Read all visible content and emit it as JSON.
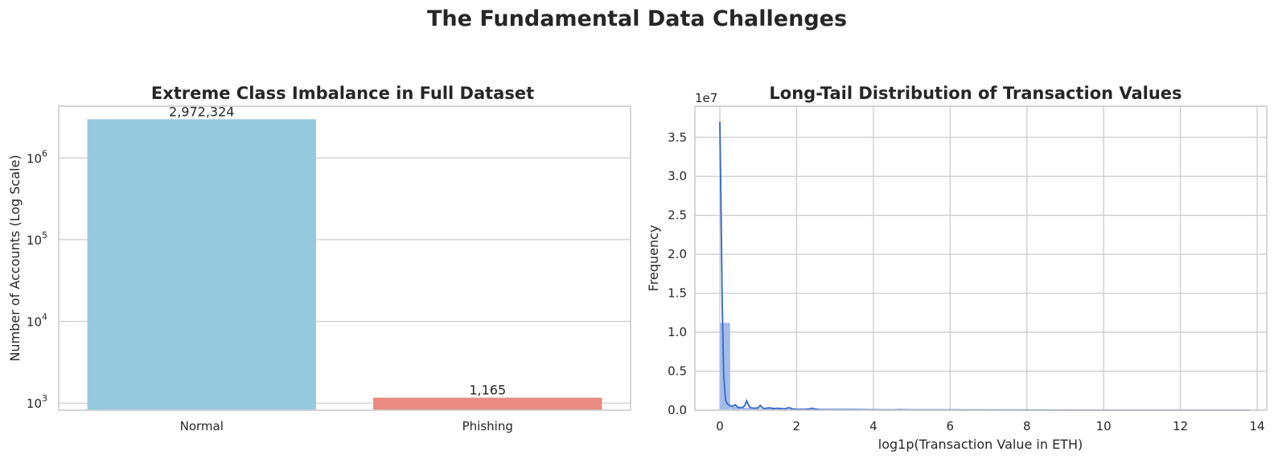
{
  "figure": {
    "title": "The Fundamental Data Challenges"
  },
  "chart_data": [
    {
      "type": "bar",
      "title": "Extreme Class Imbalance in Full Dataset",
      "xlabel": "",
      "ylabel": "Number of Accounts (Log Scale)",
      "y_scale": "log",
      "ylim": [
        820,
        4300000
      ],
      "y_ticks": [
        {
          "value": 1000,
          "base": "10",
          "exp": "3"
        },
        {
          "value": 10000,
          "base": "10",
          "exp": "4"
        },
        {
          "value": 100000,
          "base": "10",
          "exp": "5"
        },
        {
          "value": 1000000,
          "base": "10",
          "exp": "6"
        }
      ],
      "categories": [
        "Normal",
        "Phishing"
      ],
      "values": [
        2972324,
        1165
      ],
      "value_labels": [
        "2,972,324",
        "1,165"
      ],
      "colors": [
        "#95c9dd",
        "#e98b82"
      ],
      "grid": true
    },
    {
      "type": "bar",
      "subtype": "histogram_with_kde",
      "title": "Long-Tail Distribution of Transaction Values",
      "xlabel": "log1p(Transaction Value in ETH)",
      "ylabel": "Frequency",
      "y_offset_text": "1e7",
      "xlim": [
        -0.65,
        14.25
      ],
      "ylim": [
        0,
        3.9
      ],
      "x_ticks": [
        "0",
        "2",
        "4",
        "6",
        "8",
        "10",
        "12",
        "14"
      ],
      "y_ticks": [
        "0.0",
        "0.5",
        "1.0",
        "1.5",
        "2.0",
        "2.5",
        "3.0",
        "3.5"
      ],
      "bar_color": "#a3bbe8",
      "line_color": "#3d6fcf",
      "histogram": {
        "bin_edges": [
          0,
          0.28,
          0.56,
          0.84,
          1.12,
          1.4,
          1.68,
          1.96,
          2.24,
          2.52,
          2.8,
          3.08,
          3.36,
          3.64,
          3.92,
          4.2,
          4.48,
          4.76,
          5.04
        ],
        "counts": [
          1.12,
          0.045,
          0.03,
          0.02,
          0.025,
          0.015,
          0.012,
          0.01,
          0.012,
          0.008,
          0.006,
          0.005,
          0.004,
          0.003,
          0.002,
          0.002,
          0.002,
          0.001
        ]
      },
      "kde": {
        "x": [
          0,
          0.03,
          0.06,
          0.1,
          0.15,
          0.2,
          0.25,
          0.3,
          0.35,
          0.4,
          0.45,
          0.5,
          0.6,
          0.65,
          0.7,
          0.75,
          0.8,
          0.9,
          1.0,
          1.05,
          1.1,
          1.15,
          1.2,
          1.3,
          1.4,
          1.5,
          1.6,
          1.7,
          1.75,
          1.8,
          1.9,
          2.0,
          2.2,
          2.35,
          2.4,
          2.45,
          2.6,
          3.0,
          3.5,
          4.0,
          4.5,
          4.7,
          5.0,
          6.0,
          8.0,
          10.0,
          12.0,
          13.8
        ],
        "y": [
          3.7,
          2.6,
          1.4,
          0.45,
          0.12,
          0.08,
          0.06,
          0.05,
          0.055,
          0.07,
          0.045,
          0.03,
          0.035,
          0.06,
          0.12,
          0.06,
          0.03,
          0.025,
          0.03,
          0.06,
          0.035,
          0.02,
          0.025,
          0.03,
          0.02,
          0.025,
          0.02,
          0.015,
          0.025,
          0.03,
          0.015,
          0.012,
          0.01,
          0.015,
          0.025,
          0.015,
          0.008,
          0.007,
          0.006,
          0.004,
          0.003,
          0.005,
          0.003,
          0.002,
          0.001,
          0.0005,
          0.0003,
          0.0002
        ]
      },
      "grid": true
    }
  ]
}
